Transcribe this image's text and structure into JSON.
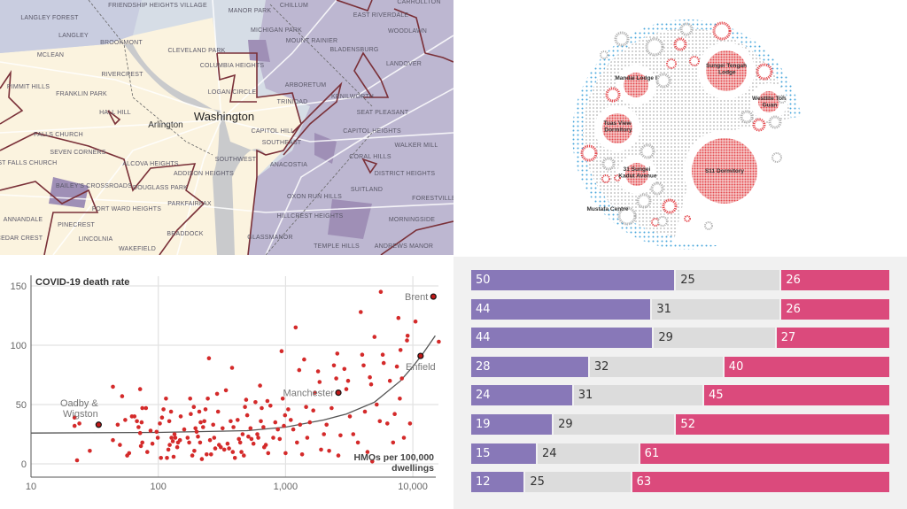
{
  "map": {
    "city_label": "Washington",
    "secondary_label": "Arlington",
    "labels": [
      "FRIENDSHIP HEIGHTS VILLAGE",
      "MANOR PARK",
      "CHILLUM",
      "CARROLLTON",
      "EAST RIVERDALE",
      "LANGLEY FOREST",
      "LANGLEY",
      "BROOKMONT",
      "WOODLAWN",
      "MICHIGAN PARK",
      "MOUNT RAINIER",
      "BLADENSBURG",
      "MCLEAN",
      "CLEVELAND PARK",
      "LANDOVER",
      "COLUMBIA HEIGHTS",
      "RIVERCREST",
      "ARBORETUM",
      "KENILWORTH",
      "PIMMIT HILLS",
      "FRANKLIN PARK",
      "LOGAN CIRCLE",
      "TRINIDAD",
      "HALL HILL",
      "SEAT PLEASANT",
      "CAPITOL HILL",
      "CAPITOL HEIGHTS",
      "FALLS CHURCH",
      "SOUTHEAST",
      "WALKER MILL",
      "SEVEN CORNERS",
      "CORAL HILLS",
      "SOUTHWEST",
      "ANACOSTIA",
      "WEST FALLS CHURCH",
      "ALCOVA HEIGHTS",
      "DISTRICT HEIGHTS",
      "ADDISON HEIGHTS",
      "BAILEY'S CROSSROADS",
      "DOUGLASS PARK",
      "SUITLAND",
      "OXON RUN HILLS",
      "FORESTVILLE",
      "FORT WARD HEIGHTS",
      "PARKFAIRFAX",
      "ANNANDALE",
      "HILLCREST HEIGHTS",
      "MORNINGSIDE",
      "PINECREST",
      "BRADDOCK",
      "CEDAR CREST",
      "LINCOLNIA",
      "GLASSMANOR",
      "TEMPLE HILLS",
      "ANDREWS MANOR",
      "WAKEFIELD"
    ],
    "colors": {
      "low": "#fbf3df",
      "mid": "#d6dde6",
      "high": "#bdb7d1",
      "highest": "#9f8fb6",
      "boundary": "#7a3038",
      "water": "#c9cacc"
    }
  },
  "bubble": {
    "labels": [
      "Sungei Tengah Lodge",
      "Mandai Lodge I",
      "Westlite Toh Guan",
      "Tuas View Dormitory",
      "31 Sungei Kadut Avenue",
      "S11 Dormitory",
      "Mustafa Centre"
    ],
    "colors": {
      "cluster": "#e5484d",
      "other": "#b3b3b3",
      "edge": "#4aa6dc"
    }
  },
  "chart_data": [
    {
      "type": "scatter",
      "title": "",
      "ylabel": "COVID-19 death rate",
      "xlabel": "HMOs per 100,000 dwellings",
      "x_scale": "log",
      "xlim": [
        10,
        16000
      ],
      "ylim": [
        0,
        150
      ],
      "x_ticks": [
        "10",
        "100",
        "1,000",
        "10,000"
      ],
      "x_tick_values": [
        10,
        100,
        1000,
        10000
      ],
      "y_ticks": [
        "0",
        "50",
        "100",
        "150"
      ],
      "y_tick_values": [
        0,
        50,
        100,
        150
      ],
      "grid": true,
      "point_color": "#d42a2a",
      "points": [
        [
          22,
          32
        ],
        [
          22,
          39
        ],
        [
          24,
          34
        ],
        [
          23,
          3
        ],
        [
          29,
          11
        ],
        [
          44,
          65
        ],
        [
          44,
          20
        ],
        [
          48,
          33
        ],
        [
          50,
          16
        ],
        [
          52,
          57
        ],
        [
          55,
          37
        ],
        [
          57,
          7
        ],
        [
          59,
          9
        ],
        [
          62,
          40
        ],
        [
          65,
          40
        ],
        [
          68,
          36
        ],
        [
          70,
          31
        ],
        [
          72,
          26
        ],
        [
          72,
          63
        ],
        [
          73,
          15
        ],
        [
          74,
          35
        ],
        [
          75,
          47
        ],
        [
          75,
          18
        ],
        [
          80,
          47
        ],
        [
          82,
          10
        ],
        [
          87,
          28
        ],
        [
          90,
          17
        ],
        [
          97,
          27
        ],
        [
          99,
          22
        ],
        [
          103,
          34
        ],
        [
          105,
          5
        ],
        [
          107,
          39
        ],
        [
          110,
          46
        ],
        [
          115,
          55
        ],
        [
          117,
          5
        ],
        [
          120,
          12
        ],
        [
          122,
          36
        ],
        [
          123,
          16
        ],
        [
          126,
          44
        ],
        [
          127,
          22
        ],
        [
          130,
          19
        ],
        [
          132,
          6
        ],
        [
          134,
          25
        ],
        [
          136,
          22
        ],
        [
          141,
          14
        ],
        [
          143,
          18
        ],
        [
          148,
          20
        ],
        [
          150,
          40
        ],
        [
          160,
          29
        ],
        [
          170,
          22
        ],
        [
          175,
          18
        ],
        [
          178,
          55
        ],
        [
          180,
          42
        ],
        [
          185,
          7
        ],
        [
          190,
          48
        ],
        [
          192,
          11
        ],
        [
          196,
          30
        ],
        [
          200,
          27
        ],
        [
          205,
          23
        ],
        [
          210,
          44
        ],
        [
          213,
          18
        ],
        [
          215,
          35
        ],
        [
          220,
          4
        ],
        [
          225,
          31
        ],
        [
          230,
          36
        ],
        [
          235,
          46
        ],
        [
          240,
          8
        ],
        [
          245,
          55
        ],
        [
          250,
          89
        ],
        [
          255,
          20
        ],
        [
          260,
          8
        ],
        [
          270,
          33
        ],
        [
          275,
          22
        ],
        [
          280,
          13
        ],
        [
          290,
          59
        ],
        [
          295,
          44
        ],
        [
          300,
          16
        ],
        [
          310,
          14
        ],
        [
          320,
          30
        ],
        [
          330,
          12
        ],
        [
          340,
          62
        ],
        [
          350,
          17
        ],
        [
          360,
          13
        ],
        [
          370,
          36
        ],
        [
          380,
          81
        ],
        [
          385,
          10
        ],
        [
          390,
          31
        ],
        [
          400,
          5
        ],
        [
          420,
          37
        ],
        [
          430,
          21
        ],
        [
          440,
          18
        ],
        [
          450,
          10
        ],
        [
          460,
          25
        ],
        [
          470,
          7
        ],
        [
          480,
          48
        ],
        [
          490,
          54
        ],
        [
          500,
          41
        ],
        [
          510,
          23
        ],
        [
          530,
          30
        ],
        [
          540,
          21
        ],
        [
          560,
          17
        ],
        [
          580,
          52
        ],
        [
          600,
          25
        ],
        [
          610,
          22
        ],
        [
          630,
          66
        ],
        [
          640,
          36
        ],
        [
          650,
          47
        ],
        [
          670,
          31
        ],
        [
          680,
          14
        ],
        [
          700,
          16
        ],
        [
          720,
          53
        ],
        [
          730,
          9
        ],
        [
          760,
          49
        ],
        [
          800,
          22
        ],
        [
          830,
          35
        ],
        [
          870,
          29
        ],
        [
          900,
          21
        ],
        [
          930,
          95
        ],
        [
          950,
          55
        ],
        [
          970,
          32
        ],
        [
          990,
          41
        ],
        [
          1000,
          9
        ],
        [
          1050,
          46
        ],
        [
          1100,
          37
        ],
        [
          1150,
          29
        ],
        [
          1200,
          115
        ],
        [
          1230,
          18
        ],
        [
          1280,
          79
        ],
        [
          1300,
          33
        ],
        [
          1350,
          8
        ],
        [
          1400,
          88
        ],
        [
          1450,
          48
        ],
        [
          1480,
          22
        ],
        [
          1550,
          35
        ],
        [
          1650,
          45
        ],
        [
          1700,
          60
        ],
        [
          1800,
          78
        ],
        [
          1850,
          69
        ],
        [
          1900,
          12
        ],
        [
          2000,
          25
        ],
        [
          2100,
          33
        ],
        [
          2200,
          11
        ],
        [
          2300,
          47
        ],
        [
          2400,
          83
        ],
        [
          2500,
          72
        ],
        [
          2550,
          93
        ],
        [
          2600,
          7
        ],
        [
          2700,
          24
        ],
        [
          2900,
          80
        ],
        [
          3000,
          63
        ],
        [
          3100,
          70
        ],
        [
          3200,
          40
        ],
        [
          3400,
          25
        ],
        [
          3700,
          18
        ],
        [
          3900,
          128
        ],
        [
          4000,
          92
        ],
        [
          4100,
          83
        ],
        [
          4200,
          44
        ],
        [
          4400,
          10
        ],
        [
          4600,
          73
        ],
        [
          4700,
          67
        ],
        [
          4800,
          2
        ],
        [
          5000,
          107
        ],
        [
          5200,
          50
        ],
        [
          5500,
          36
        ],
        [
          5600,
          145
        ],
        [
          5800,
          92
        ],
        [
          5900,
          85
        ],
        [
          6300,
          34
        ],
        [
          6600,
          70
        ],
        [
          7000,
          18
        ],
        [
          7200,
          42
        ],
        [
          7500,
          82
        ],
        [
          7700,
          123
        ],
        [
          7900,
          55
        ],
        [
          8000,
          96
        ],
        [
          8200,
          72
        ],
        [
          8500,
          22
        ],
        [
          9000,
          104
        ],
        [
          9100,
          108
        ],
        [
          9500,
          34
        ],
        [
          10500,
          120
        ],
        [
          16000,
          103
        ]
      ],
      "highlighted": [
        {
          "label": "Oadby & Wigston",
          "x": 34,
          "y": 33
        },
        {
          "label": "Manchester",
          "x": 2600,
          "y": 60
        },
        {
          "label": "Enfield",
          "x": 11500,
          "y": 91
        },
        {
          "label": "Brent",
          "x": 14500,
          "y": 141
        }
      ],
      "trend_line": [
        [
          10,
          26
        ],
        [
          100,
          26.5
        ],
        [
          500,
          28
        ],
        [
          1000,
          31
        ],
        [
          2000,
          37
        ],
        [
          3000,
          42
        ],
        [
          5000,
          52
        ],
        [
          8000,
          70
        ],
        [
          10000,
          82
        ],
        [
          12000,
          93
        ],
        [
          15000,
          108
        ]
      ]
    },
    {
      "type": "bar",
      "orientation": "horizontal",
      "stacked": true,
      "series": [
        {
          "color": "#8878b8",
          "values": [
            50,
            44,
            44,
            28,
            24,
            19,
            15,
            12
          ]
        },
        {
          "color": "#dcdcdc",
          "values": [
            25,
            31,
            29,
            32,
            31,
            29,
            24,
            25
          ]
        },
        {
          "color": "#db4a7c",
          "values": [
            26,
            26,
            27,
            40,
            45,
            52,
            61,
            63
          ]
        }
      ]
    }
  ]
}
